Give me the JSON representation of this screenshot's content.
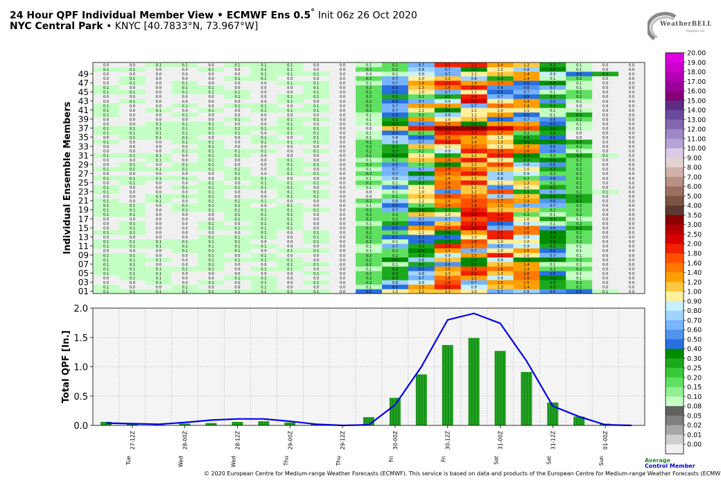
{
  "header": {
    "title_main": "24 Hour QPF Individual Member View • ECMWF Ens 0.5",
    "title_degree": "°",
    "title_init": "Init 06z 26 Oct 2020",
    "location_name": "NYC Central Park",
    "location_detail": "• KNYC [40.7833°N, 73.967°W]"
  },
  "logo": {
    "name": "WeatherBELL",
    "sub": "Analytics LLC"
  },
  "legend": {
    "average_label": "Average",
    "control_label": "Control Member"
  },
  "footer": "© 2020 European Centre for Medium-range Weather Forecasts (ECMWF). This service is based on data and products of the European Centre for Medium-range Weather Forecasts (ECMWF)",
  "colors": {
    "average": "#1a8f1a",
    "control": "#0000ee"
  },
  "chart_data": [
    {
      "type": "heatmap",
      "ylabel": "Individual Ensemble Members",
      "ytick_labels": [
        "49",
        "47",
        "45",
        "43",
        "41",
        "39",
        "37",
        "35",
        "33",
        "31",
        "29",
        "27",
        "25",
        "23",
        "21",
        "19",
        "17",
        "15",
        "13",
        "11",
        "09",
        "07",
        "05",
        "03",
        "01"
      ],
      "members": 51,
      "columns": 21,
      "sample_rows": {
        "member_49": [
          "0.0",
          "0.0",
          "0.0",
          "0.0",
          "0.0",
          "0.0",
          "0.1",
          "0.1",
          "0.1",
          "0.0",
          "0.0",
          "0.1",
          "0.9",
          "0.7",
          "1.1",
          "1.2",
          "1.4",
          "0.9",
          "0.5",
          "0.3",
          "0.0"
        ],
        "member_37": [
          "0.1",
          "0.1",
          "0.1",
          "0.1",
          "0.1",
          "0.1",
          "0.1",
          "0.1",
          "0.1",
          "0.0",
          "0.0",
          "1.3",
          "2.1",
          "3.5",
          "3.8",
          "2.6",
          "1.8",
          "0.4",
          "0.1",
          "0.0",
          "0.0"
        ],
        "member_01": [
          "0.1",
          "0.1",
          "0.1",
          "0.1",
          "0.1",
          "0.1",
          "0.1",
          "0.1",
          "0.1",
          "0.0",
          "0.5",
          "1.0",
          "1.2",
          "1.3",
          "1.0",
          "0.7",
          "0.8",
          "0.6",
          "0.5",
          "0.1",
          "0.0"
        ]
      },
      "colorbar": {
        "labels": [
          "20.00",
          "19.00",
          "18.00",
          "17.00",
          "16.00",
          "15.00",
          "14.00",
          "13.00",
          "12.00",
          "11.00",
          "10.00",
          "9.00",
          "8.00",
          "7.00",
          "6.00",
          "5.00",
          "4.00",
          "3.50",
          "3.00",
          "2.50",
          "2.00",
          "1.80",
          "1.60",
          "1.40",
          "1.20",
          "1.00",
          "0.90",
          "0.80",
          "0.70",
          "0.60",
          "0.50",
          "0.40",
          "0.30",
          "0.25",
          "0.20",
          "0.15",
          "0.10",
          "0.08",
          "0.05",
          "0.02",
          "0.01",
          "0.00"
        ],
        "colors": [
          "#e000e0",
          "#cc00cc",
          "#b400b4",
          "#9c009c",
          "#86007a",
          "#5c2c80",
          "#6a4a9c",
          "#8466b0",
          "#9c88c4",
          "#b4a4d4",
          "#d8cce6",
          "#e4d4d0",
          "#d0b0a8",
          "#b89084",
          "#9c7060",
          "#7c5444",
          "#5c3830",
          "#8c0000",
          "#b40000",
          "#d80000",
          "#f02000",
          "#ff5000",
          "#ff7800",
          "#ffa000",
          "#ffc840",
          "#fff09c",
          "#c8f0ff",
          "#a0d4ff",
          "#78b4ff",
          "#5094f0",
          "#2870e0",
          "#008c00",
          "#1ca81c",
          "#38c838",
          "#60e060",
          "#90f090",
          "#c4ffc4",
          "#606060",
          "#808080",
          "#a8a8a8",
          "#d0d0d0",
          "#f0f0f0"
        ]
      }
    },
    {
      "type": "bar",
      "ylabel": "Total QPF [In.]",
      "ylim": [
        0,
        2.0
      ],
      "yticks": [
        0.0,
        0.5,
        1.0,
        1.5,
        2.0
      ],
      "grid": true,
      "x_tick_labels": [
        "27-12Z",
        "28-00Z",
        "28-12Z",
        "29-00Z",
        "29-12Z",
        "30-00Z",
        "30-12Z",
        "31-00Z",
        "31-12Z",
        "01-00Z"
      ],
      "x_day_labels": [
        "Tue",
        "Wed",
        "Wed",
        "Thu",
        "Thu",
        "Fri",
        "Fri",
        "Sat",
        "Sat",
        "Sun"
      ],
      "series": [
        {
          "name": "Average",
          "values": [
            0.06,
            0.02,
            0.01,
            0.03,
            0.04,
            0.06,
            0.07,
            0.05,
            0.02,
            0.0,
            0.14,
            0.47,
            0.87,
            1.37,
            1.49,
            1.27,
            0.91,
            0.39,
            0.15,
            0.03,
            0.0
          ]
        },
        {
          "name": "Control Member",
          "values": [
            0.04,
            0.03,
            0.02,
            0.05,
            0.09,
            0.11,
            0.11,
            0.07,
            0.02,
            0.0,
            0.01,
            0.35,
            1.0,
            1.8,
            1.91,
            1.74,
            1.1,
            0.33,
            0.15,
            0.01,
            0.0
          ]
        }
      ]
    }
  ]
}
